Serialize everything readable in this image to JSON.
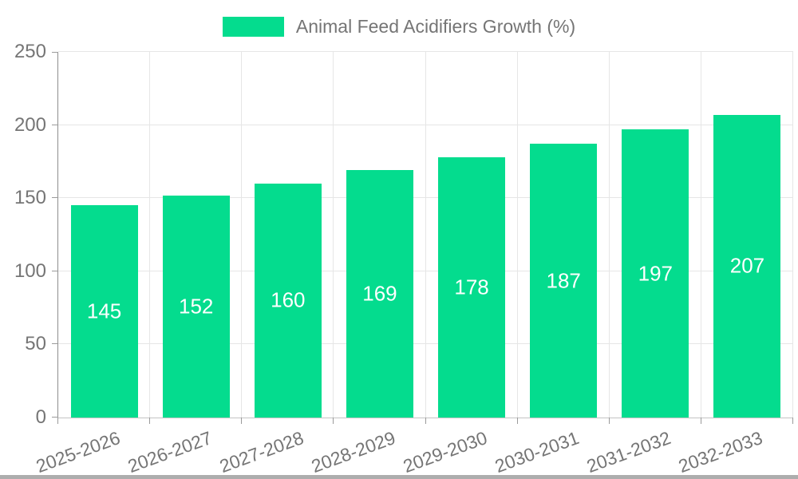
{
  "legend": {
    "label": "Animal Feed Acidifiers Growth (%)",
    "swatch_color": "#04DC8E"
  },
  "chart_data": {
    "type": "bar",
    "title": "Animal Feed Acidifiers Growth (%)",
    "categories": [
      "2025-2026",
      "2026-2027",
      "2027-2028",
      "2028-2029",
      "2029-2030",
      "2030-2031",
      "2031-2032",
      "2032-2033"
    ],
    "values": [
      145,
      152,
      160,
      169,
      178,
      187,
      197,
      207
    ],
    "xlabel": "",
    "ylabel": "",
    "ylim": [
      0,
      250
    ],
    "yticks": [
      0,
      50,
      100,
      150,
      200,
      250
    ],
    "grid": true,
    "legend_position": "top-center",
    "bar_color": "#04DC8E",
    "value_label_color": "#ffffff",
    "axis_text_color": "#757575",
    "x_label_rotation_deg": -20
  }
}
